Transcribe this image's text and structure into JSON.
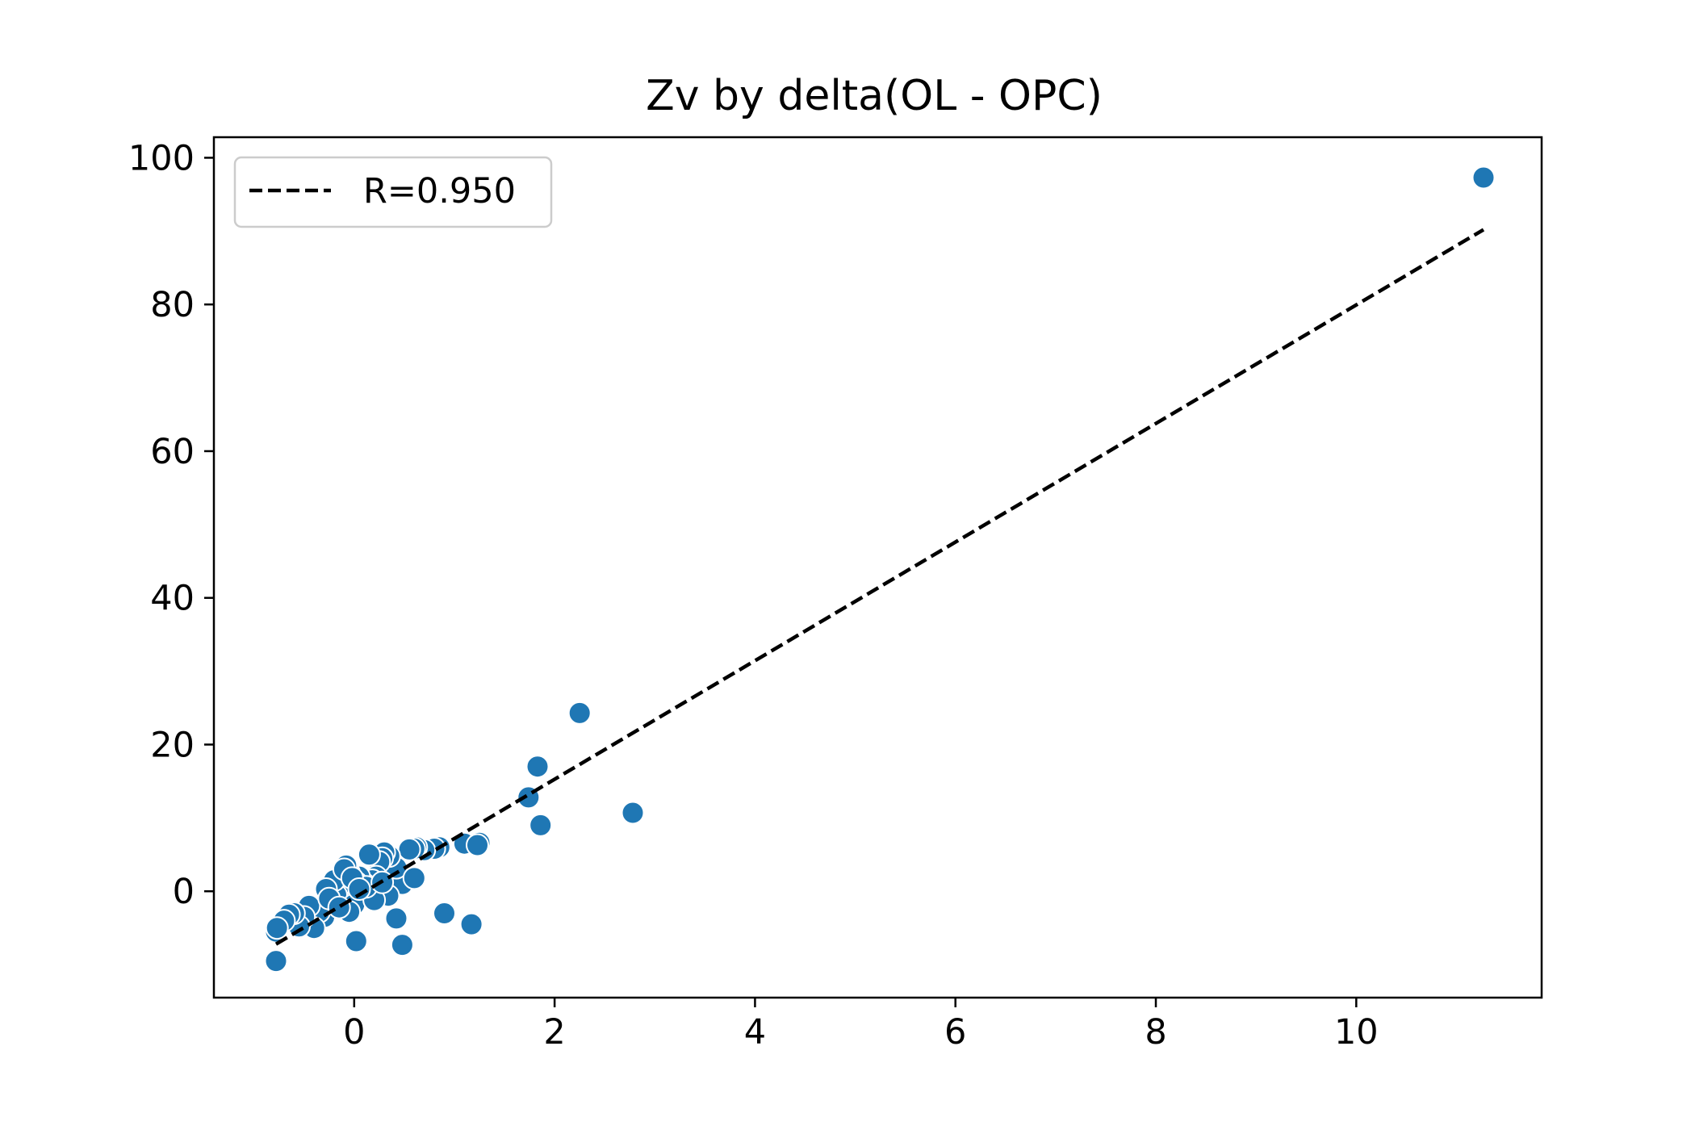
{
  "chart_data": {
    "type": "scatter",
    "title": "Zv by delta(OL - OPC)",
    "xlabel": "",
    "ylabel": "",
    "xlim": [
      -1.4,
      11.85
    ],
    "ylim": [
      -14.5,
      102.8
    ],
    "x_ticks": [
      0,
      2,
      4,
      6,
      8,
      10
    ],
    "y_ticks": [
      0,
      20,
      40,
      60,
      80,
      100
    ],
    "grid": false,
    "legend": {
      "position": "upper-left",
      "entries": [
        "R=0.950"
      ]
    },
    "fit_line": {
      "label": "R=0.950",
      "style": "dashed",
      "x": [
        -0.78,
        11.27
      ],
      "y": [
        -7.2,
        90.2
      ]
    },
    "series": [
      {
        "x": [
          11.27,
          2.25,
          1.83,
          1.74,
          1.86,
          2.78,
          1.1,
          1.25,
          1.23,
          0.85,
          0.8,
          0.7,
          0.62,
          0.6,
          0.55,
          0.48,
          0.42,
          0.35,
          0.3,
          0.28,
          0.25,
          0.22,
          0.18,
          0.15,
          0.12,
          0.1,
          0.08,
          0.05,
          0.02,
          0.0,
          -0.05,
          -0.08,
          -0.1,
          -0.12,
          -0.15,
          -0.18,
          -0.2,
          -0.25,
          -0.28,
          -0.3,
          -0.35,
          -0.4,
          -0.45,
          -0.5,
          -0.55,
          -0.6,
          -0.65,
          -0.7,
          -0.78,
          -0.78,
          -0.77,
          0.9,
          1.17,
          0.48,
          0.42,
          0.02,
          0.0,
          0.6,
          0.34,
          0.2,
          0.12,
          -0.05,
          -0.1,
          -0.02,
          0.05,
          -0.25,
          -0.15,
          0.28
        ],
        "y": [
          97.3,
          24.3,
          17.0,
          12.8,
          9.0,
          10.7,
          6.5,
          6.6,
          6.3,
          6.0,
          5.8,
          5.6,
          6.0,
          5.8,
          5.7,
          1.0,
          3.2,
          4.8,
          5.3,
          4.5,
          4.0,
          2.0,
          1.5,
          5.0,
          0.5,
          1.0,
          -0.5,
          2.0,
          1.2,
          -1.0,
          2.5,
          3.5,
          0.0,
          -1.5,
          -2.0,
          -0.5,
          1.5,
          -2.5,
          0.3,
          -3.5,
          -2.8,
          -5.0,
          -2.0,
          -3.5,
          -4.8,
          -3.0,
          -3.2,
          -4.0,
          -5.5,
          -9.5,
          -5.0,
          -3.0,
          -4.5,
          -7.3,
          -3.7,
          -6.8,
          -1.8,
          1.8,
          -0.6,
          -1.2,
          0.6,
          -2.8,
          3.0,
          1.8,
          0.3,
          -1.0,
          -2.2,
          1.2
        ]
      }
    ],
    "colors": {
      "points": "#1f77b4",
      "point_edge": "#ffffff",
      "fit_line": "#000000",
      "axes": "#000000",
      "legend_border": "#cccccc"
    }
  }
}
